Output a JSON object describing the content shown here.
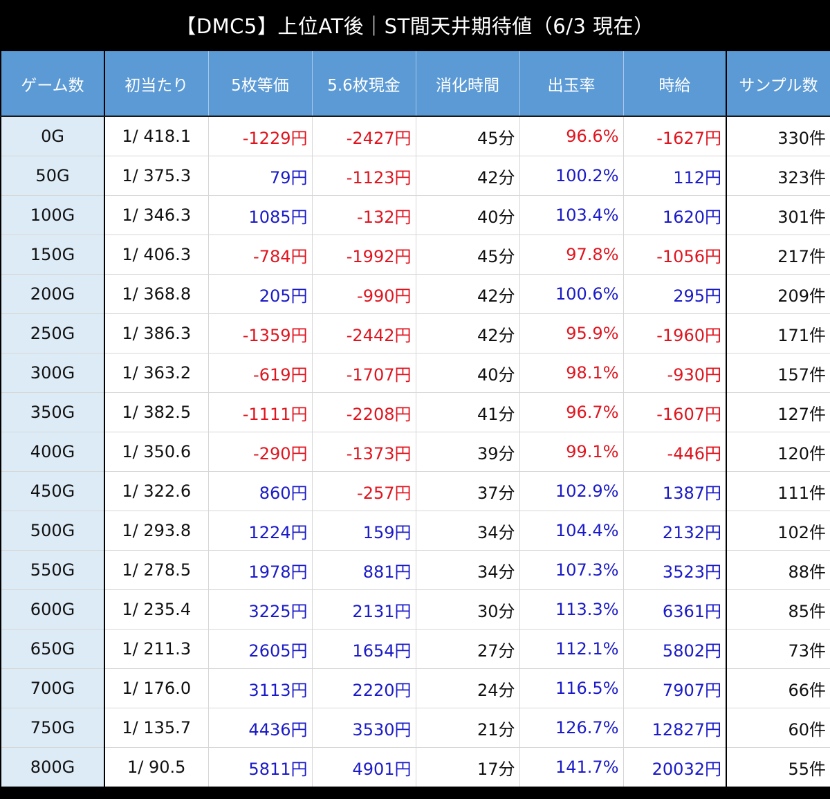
{
  "title": "【DMC5】上位AT後｜ST間天井期待値（6/3 現在）",
  "colors": {
    "title_bg": "#000000",
    "header_bg": "#5B9AD5",
    "first_col_bg": "#DDEBF7",
    "negative": "#E0141E",
    "positive": "#1A1AC8"
  },
  "table": {
    "headers": [
      "ゲーム数",
      "初当たり",
      "5枚等価",
      "5.6枚現金",
      "消化時間",
      "出玉率",
      "時給",
      "サンプル数"
    ],
    "rows": [
      {
        "game": "0G",
        "hit": "1/ 418.1",
        "eq5": "-1229円",
        "cash56": "-2427円",
        "time": "45分",
        "rate": "96.6%",
        "hourly": "-1627円",
        "samples": "330件"
      },
      {
        "game": "50G",
        "hit": "1/ 375.3",
        "eq5": "79円",
        "cash56": "-1123円",
        "time": "42分",
        "rate": "100.2%",
        "hourly": "112円",
        "samples": "323件"
      },
      {
        "game": "100G",
        "hit": "1/ 346.3",
        "eq5": "1085円",
        "cash56": "-132円",
        "time": "40分",
        "rate": "103.4%",
        "hourly": "1620円",
        "samples": "301件"
      },
      {
        "game": "150G",
        "hit": "1/ 406.3",
        "eq5": "-784円",
        "cash56": "-1992円",
        "time": "45分",
        "rate": "97.8%",
        "hourly": "-1056円",
        "samples": "217件"
      },
      {
        "game": "200G",
        "hit": "1/ 368.8",
        "eq5": "205円",
        "cash56": "-990円",
        "time": "42分",
        "rate": "100.6%",
        "hourly": "295円",
        "samples": "209件"
      },
      {
        "game": "250G",
        "hit": "1/ 386.3",
        "eq5": "-1359円",
        "cash56": "-2442円",
        "time": "42分",
        "rate": "95.9%",
        "hourly": "-1960円",
        "samples": "171件"
      },
      {
        "game": "300G",
        "hit": "1/ 363.2",
        "eq5": "-619円",
        "cash56": "-1707円",
        "time": "40分",
        "rate": "98.1%",
        "hourly": "-930円",
        "samples": "157件"
      },
      {
        "game": "350G",
        "hit": "1/ 382.5",
        "eq5": "-1111円",
        "cash56": "-2208円",
        "time": "41分",
        "rate": "96.7%",
        "hourly": "-1607円",
        "samples": "127件"
      },
      {
        "game": "400G",
        "hit": "1/ 350.6",
        "eq5": "-290円",
        "cash56": "-1373円",
        "time": "39分",
        "rate": "99.1%",
        "hourly": "-446円",
        "samples": "120件"
      },
      {
        "game": "450G",
        "hit": "1/ 322.6",
        "eq5": "860円",
        "cash56": "-257円",
        "time": "37分",
        "rate": "102.9%",
        "hourly": "1387円",
        "samples": "111件"
      },
      {
        "game": "500G",
        "hit": "1/ 293.8",
        "eq5": "1224円",
        "cash56": "159円",
        "time": "34分",
        "rate": "104.4%",
        "hourly": "2132円",
        "samples": "102件"
      },
      {
        "game": "550G",
        "hit": "1/ 278.5",
        "eq5": "1978円",
        "cash56": "881円",
        "time": "34分",
        "rate": "107.3%",
        "hourly": "3523円",
        "samples": "88件"
      },
      {
        "game": "600G",
        "hit": "1/ 235.4",
        "eq5": "3225円",
        "cash56": "2131円",
        "time": "30分",
        "rate": "113.3%",
        "hourly": "6361円",
        "samples": "85件"
      },
      {
        "game": "650G",
        "hit": "1/ 211.3",
        "eq5": "2605円",
        "cash56": "1654円",
        "time": "27分",
        "rate": "112.1%",
        "hourly": "5802円",
        "samples": "73件"
      },
      {
        "game": "700G",
        "hit": "1/ 176.0",
        "eq5": "3113円",
        "cash56": "2220円",
        "time": "24分",
        "rate": "116.5%",
        "hourly": "7907円",
        "samples": "66件"
      },
      {
        "game": "750G",
        "hit": "1/ 135.7",
        "eq5": "4436円",
        "cash56": "3530円",
        "time": "21分",
        "rate": "126.7%",
        "hourly": "12827円",
        "samples": "60件"
      },
      {
        "game": "800G",
        "hit": "1/ 90.5",
        "eq5": "5811円",
        "cash56": "4901円",
        "time": "17分",
        "rate": "141.7%",
        "hourly": "20032円",
        "samples": "55件"
      }
    ]
  }
}
